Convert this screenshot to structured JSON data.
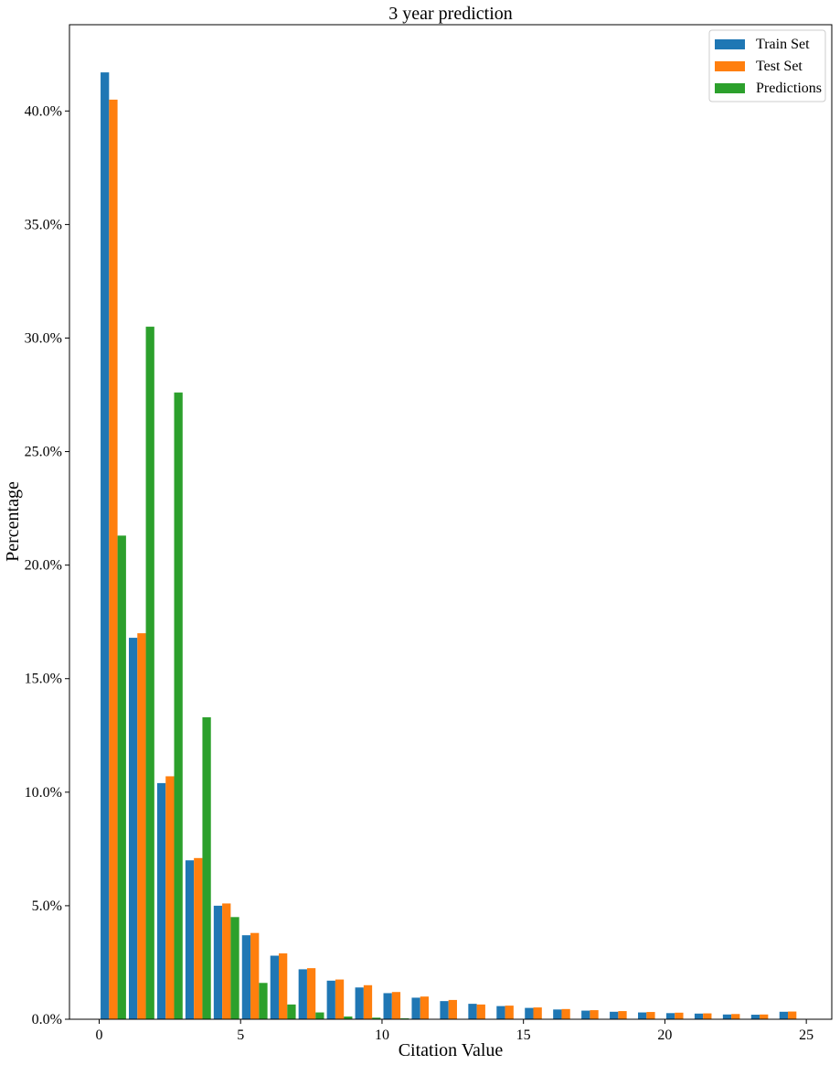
{
  "chart_data": {
    "type": "bar",
    "title": "3 year prediction",
    "xlabel": "Citation Value",
    "ylabel": "Percentage",
    "categories": [
      0,
      1,
      2,
      3,
      4,
      5,
      6,
      7,
      8,
      9,
      10,
      11,
      12,
      13,
      14,
      15,
      16,
      17,
      18,
      19,
      20,
      21,
      22,
      23,
      24
    ],
    "xticks": [
      0,
      5,
      10,
      15,
      20,
      25
    ],
    "yticks": [
      0,
      5,
      10,
      15,
      20,
      25,
      30,
      35,
      40
    ],
    "ytick_format": "percent_one_decimal",
    "xlim": [
      -1.05,
      25.9
    ],
    "ylim": [
      0,
      43.8
    ],
    "legend_position": "top-right",
    "grid": false,
    "series": [
      {
        "name": "Train Set",
        "color": "#1f77b4",
        "values": [
          41.7,
          16.8,
          10.4,
          7.0,
          5.0,
          3.7,
          2.8,
          2.2,
          1.7,
          1.4,
          1.15,
          0.95,
          0.8,
          0.68,
          0.58,
          0.5,
          0.43,
          0.38,
          0.33,
          0.3,
          0.27,
          0.25,
          0.21,
          0.2,
          0.33
        ]
      },
      {
        "name": "Test Set",
        "color": "#ff7f0e",
        "values": [
          40.5,
          17.0,
          10.7,
          7.1,
          5.1,
          3.8,
          2.9,
          2.25,
          1.75,
          1.5,
          1.2,
          1.0,
          0.85,
          0.65,
          0.6,
          0.52,
          0.45,
          0.4,
          0.36,
          0.32,
          0.29,
          0.26,
          0.23,
          0.21,
          0.34
        ]
      },
      {
        "name": "Predictions",
        "color": "#2ca02c",
        "values": [
          21.3,
          30.5,
          27.6,
          13.3,
          4.5,
          1.6,
          0.65,
          0.3,
          0.12,
          0.07,
          0.04,
          0.02,
          0.01,
          0.005,
          0,
          0,
          0,
          0,
          0,
          0,
          0,
          0,
          0,
          0,
          0
        ]
      }
    ]
  }
}
